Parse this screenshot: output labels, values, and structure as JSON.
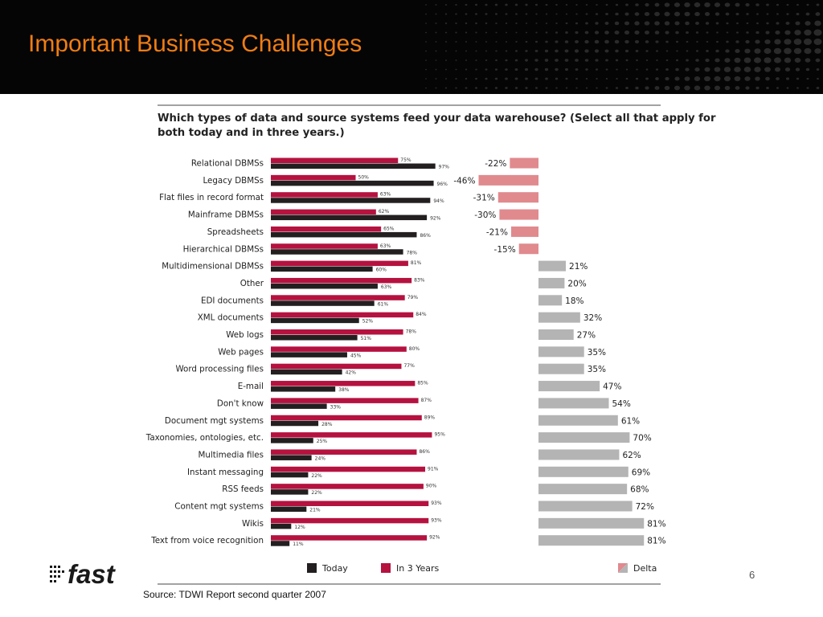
{
  "slide": {
    "title": "Important Business Challenges",
    "page_number": "6",
    "source": "Source: TDWI Report second quarter 2007",
    "logo_text": "fast"
  },
  "colors": {
    "today": "#231f20",
    "in3years": "#b5123f",
    "delta_negative": "#e08a8e",
    "delta_positive": "#b4b4b4",
    "title": "#f07d14",
    "header_bg": "#050505"
  },
  "chart_data": {
    "type": "bar",
    "orientation": "horizontal",
    "title": "Which types of data and source systems feed your data warehouse? (Select all that apply for both today and in three years.)",
    "title_lines": [
      "Which types of data and source systems feed your data warehouse? (Select all that apply for",
      "both today and in three years.)"
    ],
    "categories": [
      "Relational DBMSs",
      "Legacy DBMSs",
      "Flat files in record format",
      "Mainframe DBMSs",
      "Spreadsheets",
      "Hierarchical DBMSs",
      "Multidimensional DBMSs",
      "Other",
      "EDI documents",
      "XML documents",
      "Web logs",
      "Web pages",
      "Word processing files",
      "E-mail",
      "Don't know",
      "Document mgt systems",
      "Taxonomies, ontologies, etc.",
      "Multimedia files",
      "Instant messaging",
      "RSS feeds",
      "Content mgt systems",
      "Wikis",
      "Text from voice recognition"
    ],
    "series": [
      {
        "name": "Today",
        "values": [
          97,
          96,
          94,
          92,
          86,
          78,
          60,
          63,
          61,
          52,
          51,
          45,
          42,
          38,
          33,
          28,
          25,
          24,
          22,
          22,
          21,
          12,
          11
        ]
      },
      {
        "name": "In 3 Years",
        "values": [
          75,
          50,
          63,
          62,
          65,
          63,
          81,
          83,
          79,
          84,
          78,
          80,
          77,
          85,
          87,
          89,
          95,
          86,
          91,
          90,
          93,
          93,
          92
        ]
      },
      {
        "name": "Delta",
        "values": [
          -22,
          -46,
          -31,
          -30,
          -21,
          -15,
          21,
          20,
          18,
          32,
          27,
          35,
          35,
          47,
          54,
          61,
          70,
          62,
          69,
          68,
          72,
          81,
          81
        ]
      }
    ],
    "value_suffix": "%",
    "legend": [
      "Today",
      "In 3 Years",
      "Delta"
    ],
    "legend_position": "bottom",
    "grid": false
  }
}
